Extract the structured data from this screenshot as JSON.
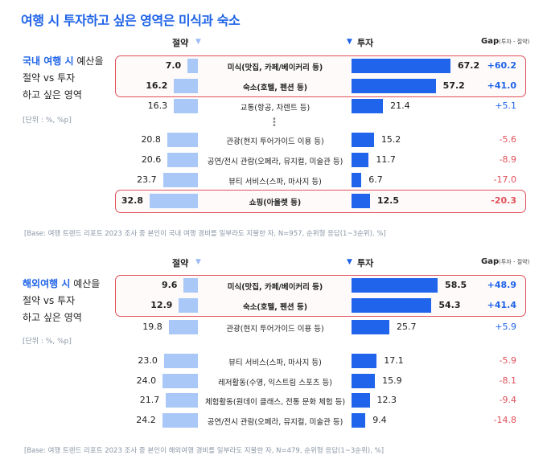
{
  "title": "여행 시 투자하고 싶은 영역은 미식과 숙소",
  "colors": {
    "accent": "#1e63e8",
    "save_bar": "#a9c8f7",
    "invest_bar": "#1f64ea",
    "negative": "#e0505a"
  },
  "headers": {
    "save": "절약",
    "invest": "투자",
    "gap": "Gap",
    "gap_note": "(투자 - 절약)"
  },
  "chart_data": [
    {
      "type": "bar",
      "title": "국내 여행 시 예산을 절약 vs 투자 하고 싶은 영역",
      "side_label": {
        "highlight": "국내 여행 시",
        "rest1": " 예산을",
        "line2": "절약 vs 투자",
        "line3": "하고 싶은 영역"
      },
      "unit": "[단위 : %, %p]",
      "base": "[Base: 여행 트렌드 리포트 2023 조사 중 본인이 국내 여행 경비를 일부라도 지불한 자, N=957, 순위형 응답(1~3순위), %]",
      "xlim": [
        0,
        100
      ],
      "rows": [
        {
          "category": "미식(맛집, 카페/베이커리 등)",
          "save": 7.0,
          "invest": 67.2,
          "gap": "+60.2",
          "highlight": true
        },
        {
          "category": "숙소(호텔, 펜션 등)",
          "save": 16.2,
          "invest": 57.2,
          "gap": "+41.0",
          "highlight": true
        },
        {
          "category": "교통(항공, 차렌트 등)",
          "save": 16.3,
          "invest": 21.4,
          "gap": "+5.1",
          "highlight": false
        },
        {
          "category": "관광(현지 투어가이드 이용 등)",
          "save": 20.8,
          "invest": 15.2,
          "gap": "-5.6",
          "highlight": false
        },
        {
          "category": "공연/전시 관람(오페라, 뮤지컬, 미술관 등)",
          "save": 20.6,
          "invest": 11.7,
          "gap": "-8.9",
          "highlight": false
        },
        {
          "category": "뷰티 서비스(스파, 마사지 등)",
          "save": 23.7,
          "invest": 6.7,
          "gap": "-17.0",
          "highlight": false
        },
        {
          "category": "쇼핑(아울렛 등)",
          "save": 32.8,
          "invest": 12.5,
          "gap": "-20.3",
          "highlight": true
        }
      ]
    },
    {
      "type": "bar",
      "title": "해외여행 시 예산을 절약 vs 투자 하고 싶은 영역",
      "side_label": {
        "highlight": "해외여행 시",
        "rest1": " 예산을",
        "line2": "절약 vs 투자",
        "line3": "하고 싶은 영역"
      },
      "unit": "[단위 : %, %p]",
      "base": "[Base: 여행 트렌드 리포트 2023 조사 중 본인이 해외여행 경비를 일부라도 지불한 자, N=479, 순위형 응답(1~3순위), %]",
      "xlim": [
        0,
        100
      ],
      "rows": [
        {
          "category": "미식(맛집, 카페/베이커리 등)",
          "save": 9.6,
          "invest": 58.5,
          "gap": "+48.9",
          "highlight": true
        },
        {
          "category": "숙소(호텔, 펜션 등)",
          "save": 12.9,
          "invest": 54.3,
          "gap": "+41.4",
          "highlight": true
        },
        {
          "category": "관광(현지 투어가이드 이용 등)",
          "save": 19.8,
          "invest": 25.7,
          "gap": "+5.9",
          "highlight": false
        },
        {
          "category": "뷰티 서비스(스파, 마사지 등)",
          "save": 23.0,
          "invest": 17.1,
          "gap": "-5.9",
          "highlight": false
        },
        {
          "category": "레저활동(수영, 익스트림 스포츠 등)",
          "save": 24.0,
          "invest": 15.9,
          "gap": "-8.1",
          "highlight": false
        },
        {
          "category": "체험활동(원데이 클래스, 전통 문화 체험 등)",
          "save": 21.7,
          "invest": 12.3,
          "gap": "-9.4",
          "highlight": false
        },
        {
          "category": "공연/전시 관람(오페라, 뮤지컬, 미술관 등)",
          "save": 24.2,
          "invest": 9.4,
          "gap": "-14.8",
          "highlight": false
        }
      ]
    }
  ]
}
